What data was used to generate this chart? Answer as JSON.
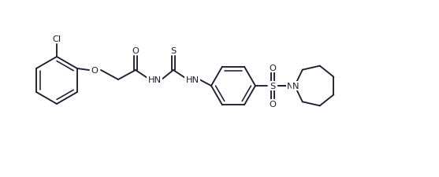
{
  "bg_color": "#ffffff",
  "line_color": "#1e1e32",
  "line_width": 1.35,
  "font_size": 8.2,
  "fig_width": 5.57,
  "fig_height": 2.26,
  "dpi": 100,
  "xlim": [
    0,
    557
  ],
  "ylim": [
    226,
    0
  ]
}
